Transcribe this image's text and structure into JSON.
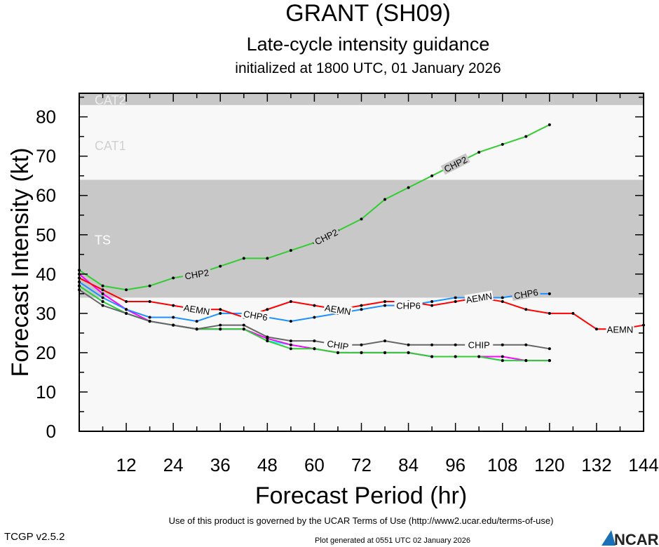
{
  "chart_data": {
    "type": "line",
    "title": "GRANT (SH09)",
    "subtitle": "Late-cycle intensity guidance",
    "subtitle2": "initialized at 1800 UTC, 01 January 2026",
    "xlabel": "Forecast Period (hr)",
    "ylabel": "Forecast Intensity (kt)",
    "xlim": [
      0,
      144
    ],
    "ylim": [
      0,
      86
    ],
    "xticks": [
      12,
      24,
      36,
      48,
      60,
      72,
      84,
      96,
      108,
      120,
      132,
      144
    ],
    "yticks": [
      0,
      10,
      20,
      30,
      40,
      50,
      60,
      70,
      80
    ],
    "bands": [
      {
        "label": "TS",
        "from": 34,
        "to": 64,
        "color": "#c8c8c8"
      },
      {
        "label": "CAT1",
        "from": 64,
        "to": 83,
        "color": "#f8f8f8"
      },
      {
        "label": "CAT2",
        "from": 83,
        "to": 96,
        "color": "#c8c8c8"
      }
    ],
    "series": [
      {
        "name": "CHP2",
        "color": "#33cc33",
        "x": [
          0,
          6,
          12,
          18,
          24,
          30,
          36,
          42,
          48,
          54,
          60,
          66,
          72,
          78,
          84,
          90,
          96,
          102,
          108,
          114,
          120
        ],
        "y": [
          41,
          37,
          36,
          37,
          39,
          40,
          42,
          44,
          44,
          46,
          48,
          51,
          54,
          59,
          62,
          65,
          68,
          71,
          73,
          75,
          78
        ]
      },
      {
        "name": "AEMN",
        "color": "#ff0000",
        "x": [
          0,
          6,
          12,
          18,
          24,
          30,
          36,
          42,
          48,
          54,
          60,
          66,
          72,
          78,
          84,
          90,
          96,
          102,
          108,
          114,
          120,
          126,
          132,
          138,
          144
        ],
        "y": [
          39,
          36,
          33,
          33,
          32,
          31,
          31,
          29,
          31,
          33,
          32,
          31,
          32,
          33,
          33,
          32,
          33,
          34,
          33,
          31,
          30,
          30,
          26,
          26,
          27
        ]
      },
      {
        "name": "CHP6",
        "color": "#1e90ff",
        "x": [
          0,
          6,
          12,
          18,
          24,
          30,
          36,
          42,
          48,
          54,
          60,
          66,
          72,
          78,
          84,
          90,
          96,
          102,
          108,
          114,
          120
        ],
        "y": [
          38,
          34,
          31,
          29,
          29,
          28,
          30,
          30,
          29,
          28,
          29,
          30,
          31,
          32,
          32,
          33,
          34,
          34,
          34,
          35,
          35
        ]
      },
      {
        "name": "CHIP",
        "color": "#666666",
        "x": [
          0,
          6,
          12,
          18,
          24,
          30,
          36,
          42,
          48,
          54,
          60,
          66,
          72,
          78,
          84,
          90,
          96,
          102,
          108,
          114,
          120
        ],
        "y": [
          36,
          32,
          30,
          28,
          27,
          26,
          27,
          27,
          24,
          23,
          23,
          22,
          22,
          23,
          22,
          22,
          22,
          22,
          22,
          22,
          21
        ]
      },
      {
        "name": "",
        "color": "#33cc33",
        "x": [
          0,
          6,
          12,
          18,
          24,
          30,
          36,
          42,
          48,
          54,
          60,
          66,
          72,
          78,
          84,
          90,
          96,
          102,
          108,
          114,
          120
        ],
        "y": [
          37,
          33,
          30,
          28,
          27,
          26,
          26,
          26,
          23,
          21,
          21,
          20,
          20,
          20,
          20,
          19,
          19,
          19,
          18,
          18,
          18
        ]
      },
      {
        "name": "",
        "color": "#ff00ff",
        "x": [
          0,
          6,
          12,
          18,
          24,
          30,
          36,
          42,
          48,
          54,
          60,
          66,
          72,
          78,
          84,
          90,
          96,
          102,
          108,
          114,
          120
        ],
        "y": [
          40,
          35,
          31,
          28,
          27,
          26,
          26,
          26,
          23.6,
          22,
          21,
          20,
          20,
          20,
          20,
          19,
          19,
          19,
          19,
          18,
          18
        ]
      },
      {
        "name": "",
        "color": "#00ffff",
        "x": [
          0,
          6,
          12,
          18,
          24,
          30,
          36,
          42,
          48,
          54,
          60,
          66,
          72,
          78,
          84,
          90,
          96,
          102,
          108,
          114,
          120
        ],
        "y": [
          37,
          33,
          30,
          28,
          27,
          26,
          26,
          26,
          23,
          22,
          21,
          20,
          20,
          20,
          20,
          19,
          19,
          19,
          18,
          18,
          18
        ]
      }
    ],
    "grid": false,
    "legend": "none (inline line labels)"
  },
  "footer": {
    "version": "TCGP v2.5.2",
    "terms": "Use of this product is governed by the UCAR Terms of Use (http://www2.ucar.edu/terms-of-use)",
    "generated": "Plot generated at 0551 UTC   02 January 2026",
    "logo": "NCAR"
  }
}
